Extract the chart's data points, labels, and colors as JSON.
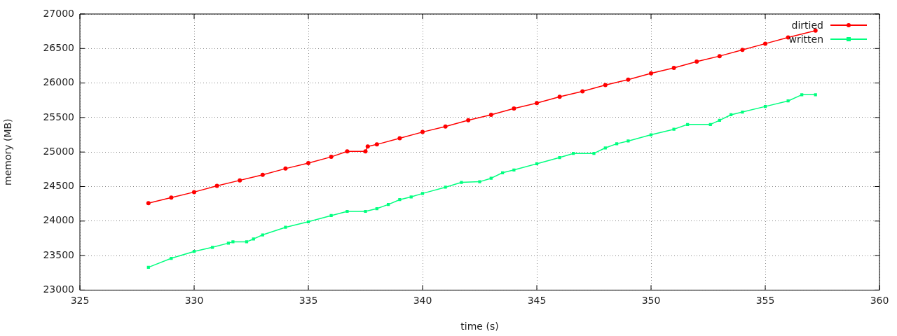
{
  "chart_data": {
    "type": "line",
    "xlabel": "time (s)",
    "ylabel": "memory (MB)",
    "xlim": [
      325,
      360
    ],
    "xticks": [
      325,
      330,
      335,
      340,
      345,
      350,
      355,
      360
    ],
    "ylim": [
      23000,
      27000
    ],
    "yticks": [
      23000,
      23500,
      24000,
      24500,
      25000,
      25500,
      26000,
      26500,
      27000
    ],
    "grid": true,
    "legend": "top right",
    "line_style": "solid",
    "series": [
      {
        "name": "dirtied",
        "color": "#ff0000",
        "marker": "circle",
        "x": [
          328,
          329,
          330,
          331,
          332,
          333,
          334,
          335,
          336,
          336.7,
          337.5,
          337.6,
          338,
          339,
          340,
          341,
          342,
          343,
          344,
          345,
          346,
          347,
          348,
          349,
          350,
          351,
          352,
          353,
          354,
          355,
          356,
          357.2
        ],
        "values": [
          24260,
          24340,
          24420,
          24510,
          24590,
          24670,
          24760,
          24840,
          24930,
          25010,
          25010,
          25080,
          25110,
          25200,
          25290,
          25370,
          25460,
          25540,
          25630,
          25710,
          25800,
          25880,
          25970,
          26050,
          26140,
          26220,
          26310,
          26390,
          26480,
          26570,
          26660,
          26760
        ]
      },
      {
        "name": "written",
        "color": "#00ff7f",
        "marker": "square",
        "x": [
          328,
          329,
          330,
          330.8,
          331.5,
          331.7,
          332.3,
          332.6,
          333,
          334,
          335,
          336,
          336.7,
          337.5,
          338,
          338.5,
          339,
          339.5,
          340,
          341,
          341.7,
          342.5,
          343,
          343.5,
          344,
          345,
          346,
          346.6,
          347.5,
          348,
          348.5,
          349,
          350,
          351,
          351.6,
          352.6,
          353,
          353.5,
          354,
          355,
          356,
          356.6,
          357.2
        ],
        "values": [
          23330,
          23460,
          23560,
          23620,
          23680,
          23700,
          23700,
          23740,
          23800,
          23910,
          23990,
          24080,
          24140,
          24140,
          24180,
          24240,
          24310,
          24350,
          24400,
          24490,
          24560,
          24570,
          24620,
          24700,
          24740,
          24830,
          24920,
          24980,
          24980,
          25060,
          25120,
          25160,
          25250,
          25330,
          25400,
          25400,
          25460,
          25540,
          25580,
          25660,
          25740,
          25830,
          25830
        ]
      }
    ]
  }
}
